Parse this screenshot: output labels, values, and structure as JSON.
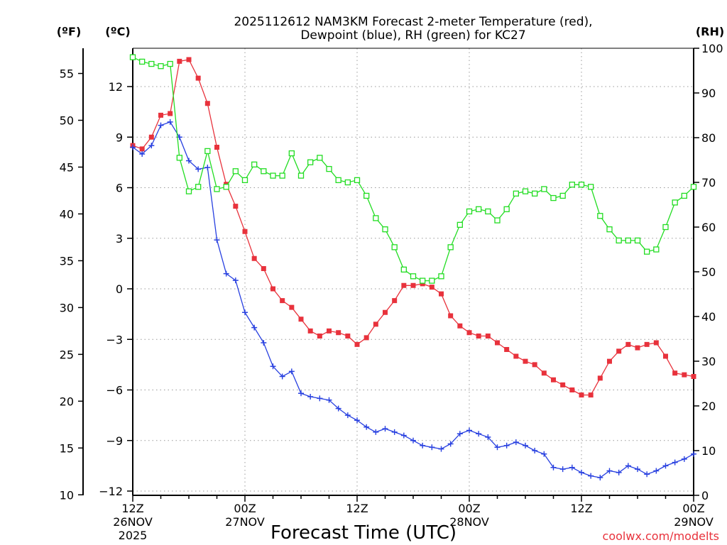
{
  "chart_data": {
    "type": "line",
    "title": "2025112612 NAM3KM Forecast 2-meter Temperature (red),",
    "title_line2": "Dewpoint (blue), RH (green) for KC27",
    "xlabel": "Forecast Time (UTC)",
    "credit": "coolwx.com/modelts",
    "left_outer_unit": "(ºF)",
    "left_inner_unit": "(ºC)",
    "right_unit": "(RH)",
    "x_range_hours": [
      0,
      60
    ],
    "ylim_c": [
      -12,
      14
    ],
    "ylim_rh": [
      0,
      100
    ],
    "yticks_c": [
      12,
      9,
      6,
      3,
      0,
      -3,
      -6,
      -9,
      -12
    ],
    "ytick_labels_c": [
      "12",
      "9",
      "6",
      "3",
      "0",
      "−3",
      "−6",
      "−9",
      "−12"
    ],
    "yticks_f": [
      55,
      50,
      45,
      40,
      35,
      30,
      25,
      20,
      15,
      10
    ],
    "yticks_rh": [
      100,
      90,
      80,
      70,
      60,
      50,
      40,
      30,
      20,
      10,
      0
    ],
    "xticks": [
      {
        "hour": 0,
        "time": "12Z",
        "date": "26NOV",
        "year": "2025"
      },
      {
        "hour": 12,
        "time": "00Z",
        "date": "27NOV",
        "year": ""
      },
      {
        "hour": 24,
        "time": "12Z",
        "date": "",
        "year": ""
      },
      {
        "hour": 36,
        "time": "00Z",
        "date": "28NOV",
        "year": ""
      },
      {
        "hour": 48,
        "time": "12Z",
        "date": "",
        "year": ""
      },
      {
        "hour": 60,
        "time": "00Z",
        "date": "29NOV",
        "year": ""
      }
    ],
    "series": [
      {
        "name": "2-meter Temperature",
        "units": "C",
        "color": "#e8323c",
        "marker": "filled-square",
        "values": [
          8.5,
          8.3,
          9.0,
          10.3,
          10.4,
          13.5,
          13.6,
          12.5,
          11.0,
          8.4,
          6.2,
          4.9,
          3.4,
          1.8,
          1.2,
          0.0,
          -0.7,
          -1.1,
          -1.8,
          -2.5,
          -2.8,
          -2.5,
          -2.6,
          -2.8,
          -3.3,
          -2.9,
          -2.1,
          -1.4,
          -0.7,
          0.2,
          0.2,
          0.3,
          0.1,
          -0.3,
          -1.6,
          -2.2,
          -2.6,
          -2.8,
          -2.8,
          -3.2,
          -3.6,
          -4.0,
          -4.3,
          -4.5,
          -5.0,
          -5.4,
          -5.7,
          -6.0,
          -6.3,
          -6.3,
          -5.3,
          -4.3,
          -3.7,
          -3.3,
          -3.5,
          -3.3,
          -3.2,
          -4.0,
          -5.0,
          -5.1,
          -5.2
        ]
      },
      {
        "name": "Dewpoint",
        "units": "C",
        "color": "#2840e0",
        "marker": "plus",
        "values": [
          8.4,
          8.0,
          8.5,
          9.7,
          9.9,
          9.0,
          7.6,
          7.1,
          7.2,
          2.9,
          0.9,
          0.5,
          -1.4,
          -2.3,
          -3.2,
          -4.6,
          -5.2,
          -4.9,
          -6.2,
          -6.4,
          -6.5,
          -6.6,
          -7.1,
          -7.5,
          -7.8,
          -8.2,
          -8.5,
          -8.3,
          -8.5,
          -8.7,
          -9.0,
          -9.3,
          -9.4,
          -9.5,
          -9.2,
          -8.6,
          -8.4,
          -8.6,
          -8.8,
          -9.4,
          -9.3,
          -9.1,
          -9.3,
          -9.6,
          -9.8,
          -10.6,
          -10.7,
          -10.6,
          -10.9,
          -11.1,
          -11.2,
          -10.8,
          -10.9,
          -10.5,
          -10.7,
          -11.0,
          -10.8,
          -10.5,
          -10.3,
          -10.1,
          -9.8
        ]
      },
      {
        "name": "RH",
        "units": "%",
        "color": "#22dd22",
        "marker": "open-square",
        "values": [
          98,
          97,
          96.5,
          96,
          96.5,
          75.5,
          68,
          69,
          77,
          68.5,
          69,
          72.5,
          70.5,
          74,
          72.5,
          71.5,
          71.5,
          76.5,
          71.5,
          74.5,
          75.5,
          73,
          70.5,
          70,
          70.5,
          67,
          62,
          59.5,
          55.5,
          50.5,
          49,
          48,
          48,
          49,
          55.5,
          60.5,
          63.5,
          64,
          63.5,
          61.5,
          64,
          67.5,
          68,
          67.5,
          68.5,
          66.5,
          67,
          69.5,
          69.5,
          69,
          62.5,
          59.5,
          57,
          57,
          57,
          54.5,
          55,
          60,
          65.5,
          67,
          69
        ]
      }
    ]
  }
}
